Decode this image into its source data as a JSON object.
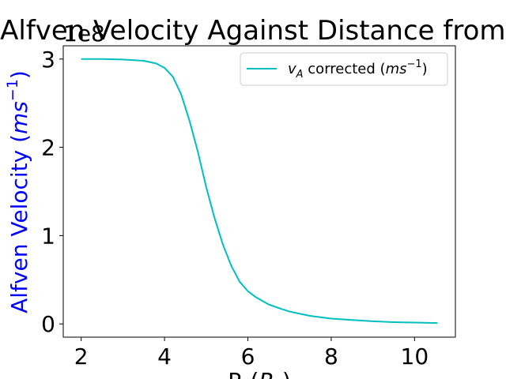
{
  "chart_data": {
    "type": "line",
    "title": "Alfven Velocity Against Distance from p",
    "xlabel": "R (R_s)",
    "ylabel": "Alfven Velocity (ms^-1)",
    "ylabel_color": "#0000ff",
    "y_offset_label": "1e8",
    "xlim": [
      1.57,
      10.98
    ],
    "ylim": [
      -0.15,
      3.15
    ],
    "xticks": [
      2,
      4,
      6,
      8,
      10
    ],
    "xtick_labels": [
      "2",
      "4",
      "6",
      "8",
      "10"
    ],
    "yticks": [
      0,
      1,
      2,
      3
    ],
    "ytick_labels": [
      "0",
      "1",
      "2",
      "3"
    ],
    "grid": false,
    "legend_position": "upper right",
    "series": [
      {
        "name": "v_A corrected (ms^-1)",
        "color": "#00bfbf",
        "x": [
          2.0,
          2.5,
          3.0,
          3.5,
          3.8,
          4.0,
          4.2,
          4.4,
          4.6,
          4.8,
          5.0,
          5.2,
          5.4,
          5.6,
          5.8,
          6.0,
          6.2,
          6.5,
          6.8,
          7.0,
          7.5,
          8.0,
          8.5,
          9.0,
          9.5,
          10.0,
          10.55
        ],
        "y": [
          3.0,
          3.0,
          2.995,
          2.98,
          2.95,
          2.9,
          2.8,
          2.6,
          2.3,
          1.95,
          1.55,
          1.2,
          0.9,
          0.66,
          0.48,
          0.37,
          0.3,
          0.22,
          0.17,
          0.14,
          0.09,
          0.06,
          0.045,
          0.03,
          0.02,
          0.015,
          0.01
        ]
      }
    ]
  },
  "text": {
    "title": "Alfven Velocity Against Distance from p",
    "offset": "1e8",
    "ylabel_main": "Alfven Velocity (",
    "ylabel_ms": "ms",
    "ylabel_exp": "−1",
    "ylabel_close": ")",
    "xlabel_main": "R (",
    "xlabel_sub_R": "R",
    "xlabel_sub_s": "s",
    "xlabel_close": ")",
    "legend_v": "v",
    "legend_sub": "A",
    "legend_mid": " corrected (",
    "legend_ms": "ms",
    "legend_exp": "−1",
    "legend_close": ")"
  }
}
